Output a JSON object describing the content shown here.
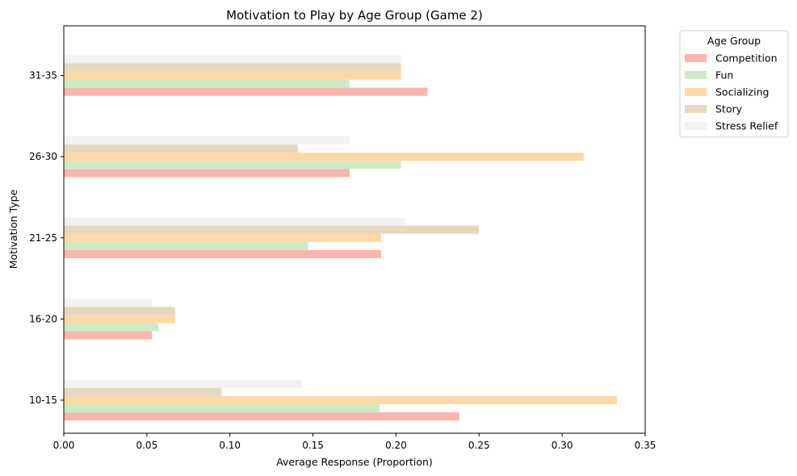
{
  "chart_data": {
    "type": "bar",
    "orientation": "horizontal",
    "title": "Motivation to Play by Age Group (Game 2)",
    "xlabel": "Average Response (Proportion)",
    "ylabel": "Motivation Type",
    "xlim": [
      0,
      0.35
    ],
    "xticks": [
      "0.00",
      "0.05",
      "0.10",
      "0.15",
      "0.20",
      "0.25",
      "0.30",
      "0.35"
    ],
    "categories": [
      "10-15",
      "16-20",
      "21-25",
      "26-30",
      "31-35"
    ],
    "legend_title": "Age Group",
    "legend_position": "outside-top-right",
    "grid": false,
    "series": [
      {
        "name": "Competition",
        "color": "#fbb4ae",
        "values": [
          0.238,
          0.053,
          0.191,
          0.172,
          0.219
        ]
      },
      {
        "name": "Fun",
        "color": "#ccebc5",
        "values": [
          0.19,
          0.057,
          0.147,
          0.203,
          0.172
        ]
      },
      {
        "name": "Socializing",
        "color": "#fed9a6",
        "values": [
          0.333,
          0.067,
          0.191,
          0.313,
          0.203
        ]
      },
      {
        "name": "Story",
        "color": "#e5d8bd",
        "values": [
          0.095,
          0.067,
          0.25,
          0.141,
          0.203
        ]
      },
      {
        "name": "Stress Relief",
        "color": "#f2f2f2",
        "values": [
          0.143,
          0.053,
          0.206,
          0.172,
          0.203
        ]
      }
    ]
  }
}
